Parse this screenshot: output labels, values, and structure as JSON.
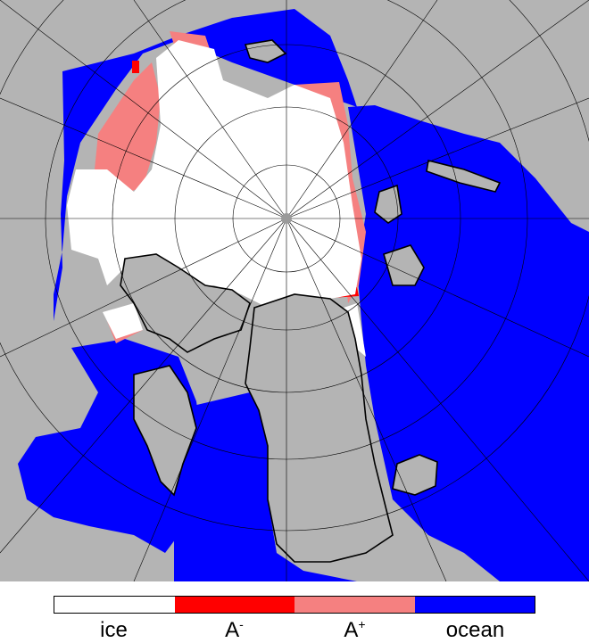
{
  "legend": {
    "items": [
      {
        "base": "ice",
        "sup": "",
        "color": "#ffffff"
      },
      {
        "base": "A",
        "sup": "-",
        "color": "#ff0000"
      },
      {
        "base": "A",
        "sup": "+",
        "color": "#f58080"
      },
      {
        "base": "ocean",
        "sup": "",
        "color": "#0000ff"
      }
    ]
  },
  "colors": {
    "land": "#b4b4b4",
    "coast": "#000000",
    "grid": "#000000",
    "pole": "#9a9a9a"
  }
}
